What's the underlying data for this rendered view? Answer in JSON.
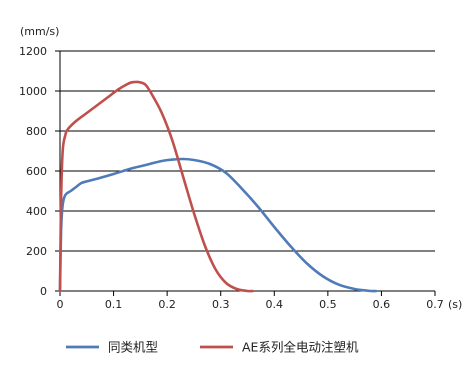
{
  "chart_data": {
    "type": "line",
    "title": "",
    "y_unit": "(mm/s)",
    "x_unit": "(s)",
    "xlim": [
      0,
      0.7
    ],
    "ylim": [
      0,
      1200
    ],
    "x_ticks": [
      0,
      0.1,
      0.2,
      0.3,
      0.4,
      0.5,
      0.6,
      0.7
    ],
    "x_tick_labels": [
      "0",
      "0.1",
      "0.2",
      "0.3",
      "0.4",
      "0.5",
      "0.6",
      "0.7"
    ],
    "y_ticks": [
      0,
      200,
      400,
      600,
      800,
      1000,
      1200
    ],
    "y_tick_labels": [
      "0",
      "200",
      "400",
      "600",
      "800",
      "1000",
      "1200"
    ],
    "grid": "horizontal",
    "legend_position": "bottom",
    "series": [
      {
        "name": "同类机型",
        "color": "#4f7cb8",
        "x": [
          0,
          0.002,
          0.005,
          0.01,
          0.02,
          0.03,
          0.04,
          0.05,
          0.07,
          0.1,
          0.13,
          0.16,
          0.19,
          0.21,
          0.23,
          0.25,
          0.28,
          0.31,
          0.34,
          0.37,
          0.4,
          0.43,
          0.46,
          0.49,
          0.52,
          0.55,
          0.57,
          0.58,
          0.59
        ],
        "y": [
          0,
          300,
          430,
          480,
          500,
          520,
          540,
          548,
          562,
          585,
          610,
          630,
          650,
          657,
          660,
          655,
          635,
          590,
          510,
          420,
          320,
          225,
          140,
          75,
          32,
          10,
          3,
          0,
          0
        ]
      },
      {
        "name": "AE系列全电动注塑机",
        "color": "#c0504d",
        "x": [
          0,
          0.002,
          0.005,
          0.01,
          0.015,
          0.03,
          0.05,
          0.07,
          0.09,
          0.11,
          0.13,
          0.14,
          0.15,
          0.16,
          0.17,
          0.19,
          0.21,
          0.23,
          0.25,
          0.27,
          0.29,
          0.31,
          0.33,
          0.35,
          0.36
        ],
        "y": [
          0,
          450,
          700,
          780,
          810,
          850,
          890,
          930,
          970,
          1010,
          1040,
          1045,
          1043,
          1030,
          990,
          890,
          750,
          570,
          390,
          230,
          110,
          40,
          10,
          0,
          0
        ]
      }
    ]
  }
}
